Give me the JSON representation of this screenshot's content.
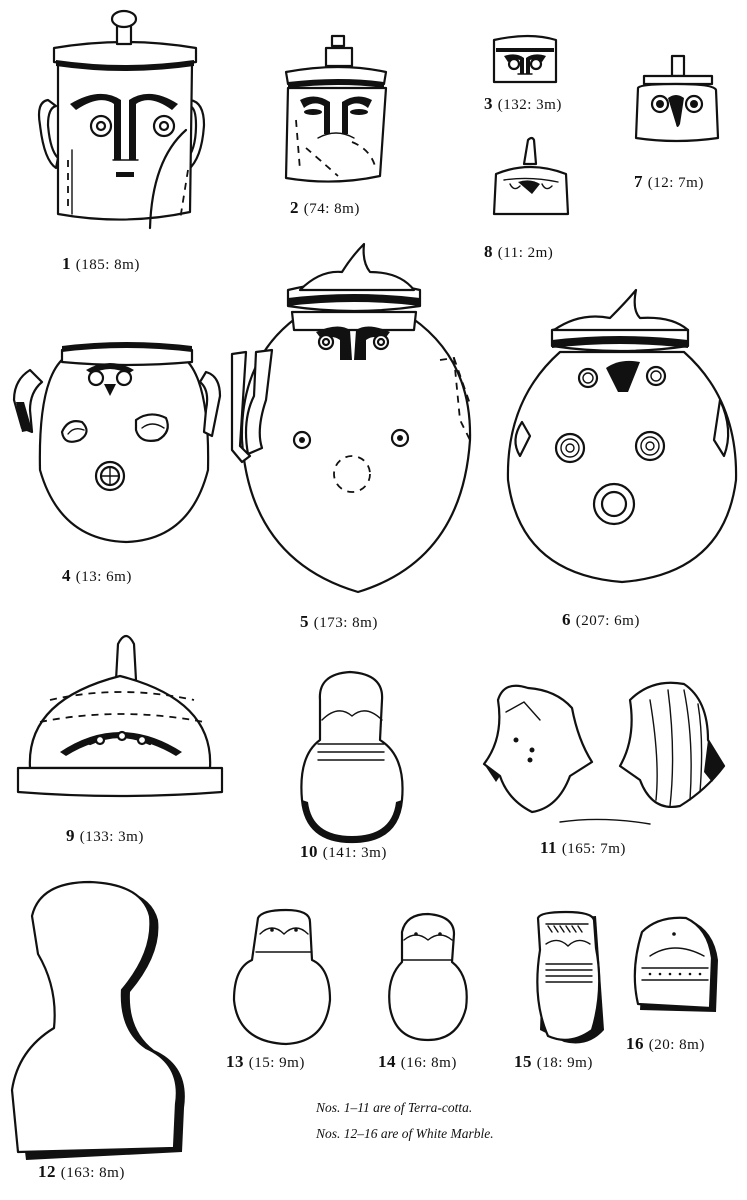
{
  "figures": [
    {
      "number": "1",
      "measure": "(185: 8m)"
    },
    {
      "number": "2",
      "measure": "(74: 8m)"
    },
    {
      "number": "3",
      "measure": "(132: 3m)"
    },
    {
      "number": "4",
      "measure": "(13: 6m)"
    },
    {
      "number": "5",
      "measure": "(173: 8m)"
    },
    {
      "number": "6",
      "measure": "(207: 6m)"
    },
    {
      "number": "7",
      "measure": "(12: 7m)"
    },
    {
      "number": "8",
      "measure": "(11: 2m)"
    },
    {
      "number": "9",
      "measure": "(133: 3m)"
    },
    {
      "number": "10",
      "measure": "(141: 3m)"
    },
    {
      "number": "11",
      "measure": "(165: 7m)"
    },
    {
      "number": "12",
      "measure": "(163: 8m)"
    },
    {
      "number": "13",
      "measure": "(15: 9m)"
    },
    {
      "number": "14",
      "measure": "(16: 8m)"
    },
    {
      "number": "15",
      "measure": "(18: 9m)"
    },
    {
      "number": "16",
      "measure": "(20: 8m)"
    }
  ],
  "notes": {
    "terracotta": "Nos. 1–11 are of Terra-cotta.",
    "marble": "Nos. 12–16 are of White Marble."
  }
}
